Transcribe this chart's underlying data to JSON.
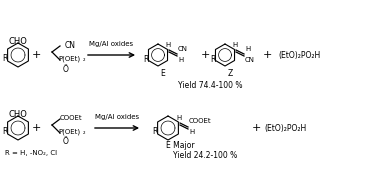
{
  "bg_color": "#ffffff",
  "fig_width": 3.9,
  "fig_height": 1.8,
  "dpi": 100,
  "reaction1": {
    "catalyst": "Mg/Al oxides",
    "byproduct": "(EtO)₂PO₂H",
    "yield": "Yield 74.4-100 %",
    "product_E": "E",
    "product_Z": "Z"
  },
  "reaction2": {
    "catalyst": "Mg/Al oxides",
    "byproduct": "(EtO)₂PO₂H",
    "yield": "Yield 24.2-100 %",
    "rgroup": "R = H, -NO₂, Cl",
    "product_label": "E Major"
  },
  "colors": {
    "black": "#000000",
    "bg": "#ffffff"
  }
}
